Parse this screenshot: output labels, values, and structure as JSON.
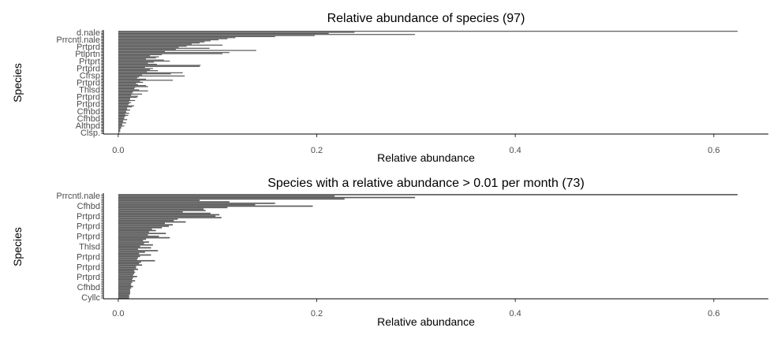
{
  "chart_data": [
    {
      "type": "bar",
      "orientation": "horizontal",
      "title": "Relative abundance of species (97)",
      "xlabel": "Relative abundance",
      "ylabel": "Species",
      "xlim": [
        -0.015,
        0.655
      ],
      "xticks": [
        "0.0",
        "0.2",
        "0.4",
        "0.6"
      ],
      "xtick_values": [
        0,
        0.2,
        0.4,
        0.6
      ],
      "bar_color": "#595959",
      "grid": false,
      "categories_visible": [
        "d.nale",
        "Prrcntl.nale",
        "Prtprd",
        "Ptlprtn",
        "Prtprt",
        "Prtprd",
        "Cfrsp",
        "Prtprd",
        "Thlsd",
        "Prtprd",
        "Prtprd",
        "Cfhbd",
        "Cfhbd",
        "Althpd",
        "Clsp."
      ],
      "values": [
        0.624,
        0.238,
        0.212,
        0.299,
        0.198,
        0.158,
        0.118,
        0.11,
        0.101,
        0.093,
        0.087,
        0.082,
        0.074,
        0.105,
        0.069,
        0.061,
        0.092,
        0.058,
        0.139,
        0.047,
        0.112,
        0.105,
        0.044,
        0.032,
        0.041,
        0.038,
        0.028,
        0.046,
        0.052,
        0.036,
        0.03,
        0.039,
        0.083,
        0.082,
        0.027,
        0.035,
        0.032,
        0.04,
        0.029,
        0.065,
        0.053,
        0.024,
        0.067,
        0.021,
        0.019,
        0.028,
        0.055,
        0.022,
        0.025,
        0.018,
        0.02,
        0.028,
        0.03,
        0.017,
        0.016,
        0.021,
        0.03,
        0.015,
        0.014,
        0.024,
        0.013,
        0.02,
        0.019,
        0.012,
        0.012,
        0.017,
        0.011,
        0.013,
        0.011,
        0.01,
        0.016,
        0.014,
        0.009,
        0.009,
        0.012,
        0.008,
        0.008,
        0.011,
        0.007,
        0.01,
        0.007,
        0.006,
        0.006,
        0.009,
        0.005,
        0.005,
        0.008,
        0.004,
        0.004,
        0.006,
        0.003,
        0.003,
        0.002,
        0.002,
        0.002,
        0.001,
        0.001
      ]
    },
    {
      "type": "bar",
      "orientation": "horizontal",
      "title": "Species with a relative abundance > 0.01 per month (73)",
      "xlabel": "Relative abundance",
      "ylabel": "Species",
      "xlim": [
        -0.015,
        0.655
      ],
      "xticks": [
        "0.0",
        "0.2",
        "0.4",
        "0.6"
      ],
      "xtick_values": [
        0,
        0.2,
        0.4,
        0.6
      ],
      "bar_color": "#595959",
      "grid": false,
      "categories_visible": [
        "Prrcntl.nale",
        "Cfhbd",
        "Prtprd",
        "Prtprd",
        "Prtprd",
        "Thlsd",
        "Prtprd",
        "Prtprd",
        "Prtprd",
        "Cfhbd",
        "Cyllc"
      ],
      "values": [
        0.624,
        0.218,
        0.299,
        0.228,
        0.082,
        0.112,
        0.158,
        0.138,
        0.196,
        0.11,
        0.086,
        0.088,
        0.065,
        0.093,
        0.102,
        0.098,
        0.104,
        0.06,
        0.056,
        0.068,
        0.047,
        0.055,
        0.051,
        0.044,
        0.034,
        0.038,
        0.031,
        0.048,
        0.03,
        0.041,
        0.052,
        0.028,
        0.025,
        0.031,
        0.026,
        0.035,
        0.022,
        0.033,
        0.02,
        0.04,
        0.027,
        0.021,
        0.033,
        0.022,
        0.02,
        0.019,
        0.037,
        0.023,
        0.021,
        0.024,
        0.018,
        0.018,
        0.02,
        0.016,
        0.017,
        0.016,
        0.015,
        0.019,
        0.015,
        0.014,
        0.017,
        0.014,
        0.013,
        0.013,
        0.015,
        0.013,
        0.012,
        0.012,
        0.012,
        0.012,
        0.011,
        0.011,
        0.011
      ]
    }
  ]
}
